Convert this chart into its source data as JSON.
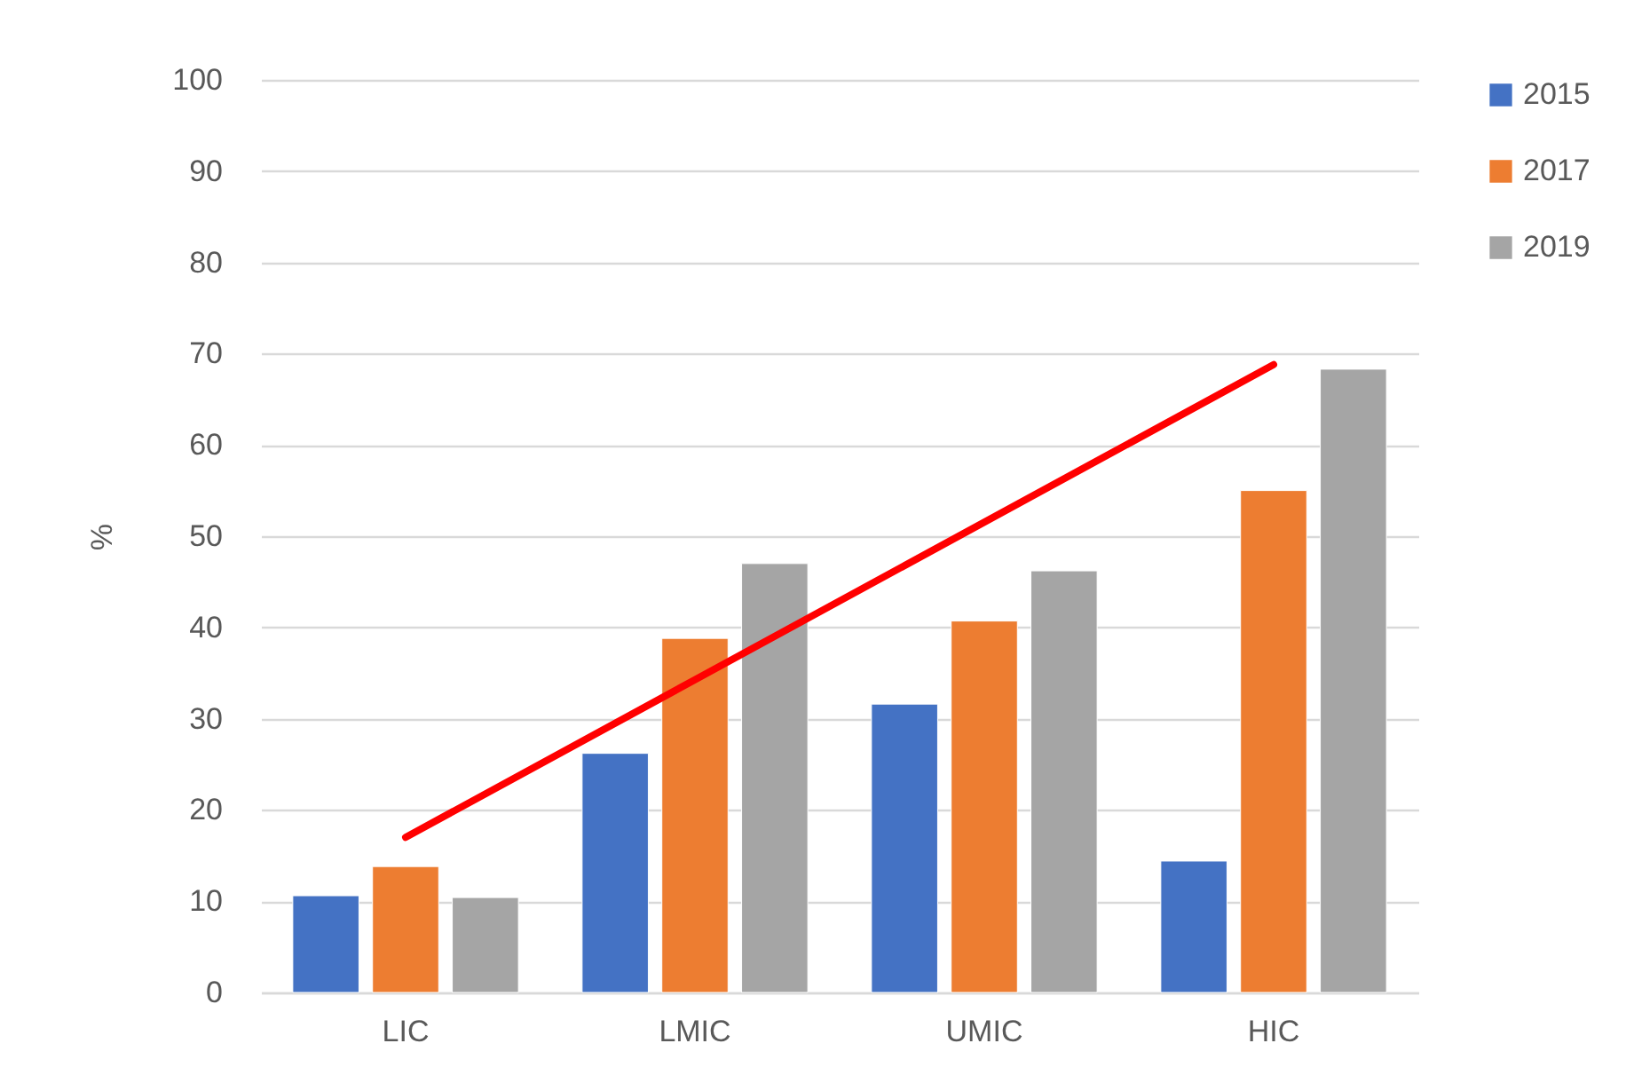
{
  "chart_data": {
    "type": "bar",
    "ylabel": "%",
    "categories": [
      "LIC",
      "LMIC",
      "UMIC",
      "HIC"
    ],
    "series": [
      {
        "name": "2015",
        "color": "#4472c4",
        "values": [
          10.6,
          26.2,
          31.6,
          14.4
        ]
      },
      {
        "name": "2017",
        "color": "#ed7d31",
        "values": [
          13.8,
          38.8,
          40.7,
          55.0
        ]
      },
      {
        "name": "2019",
        "color": "#a5a5a5",
        "values": [
          10.4,
          47.0,
          46.2,
          68.3
        ]
      },
      {
        "type": "line",
        "color": "#ff0000",
        "x": [
          "LIC",
          "HIC"
        ],
        "values": [
          17.0,
          68.8
        ]
      }
    ],
    "ylim": [
      0,
      100
    ],
    "yticks": [
      0,
      10,
      20,
      30,
      40,
      50,
      60,
      70,
      80,
      90,
      100
    ],
    "grid": "y",
    "legend": "right"
  }
}
